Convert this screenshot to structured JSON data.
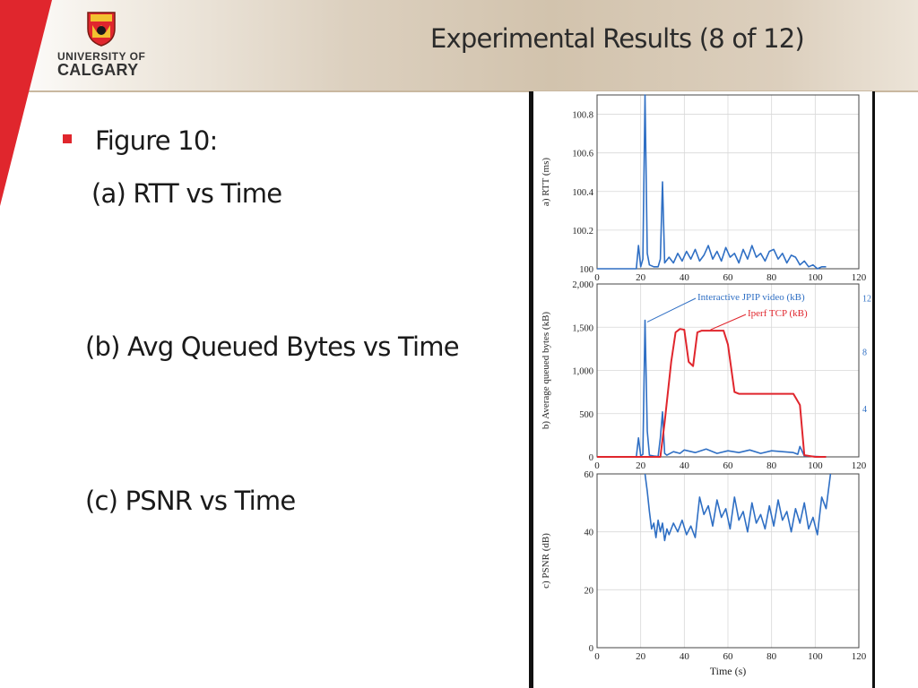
{
  "header": {
    "title": "Experimental Results (8 of 12)",
    "logo_line1": "UNIVERSITY OF",
    "logo_line2": "CALGARY"
  },
  "content": {
    "figure_label": "Figure 10:",
    "item_a": "(a) RTT vs Time",
    "item_b": "(b) Avg Queued Bytes vs Time",
    "item_c": "(c) PSNR vs Time"
  },
  "colors": {
    "accent_red": "#e0262d",
    "series_blue": "#2f6fc4",
    "series_red": "#e0262d"
  },
  "chart_data": [
    {
      "type": "line",
      "panel": "a",
      "ylabel": "a) RTT (ms)",
      "xlim": [
        0,
        120
      ],
      "ylim": [
        100,
        100.9
      ],
      "xticks": [
        "0",
        "20",
        "40",
        "60",
        "80",
        "100",
        "120"
      ],
      "yticks": [
        "100",
        "100.2",
        "100.4",
        "100.6",
        "100.8"
      ],
      "series": [
        {
          "name": "RTT",
          "color": "#2f6fc4",
          "x": [
            0,
            10,
            18,
            19,
            20,
            21,
            22,
            23,
            24,
            26,
            28,
            29,
            30,
            31,
            33,
            35,
            37,
            39,
            41,
            43,
            45,
            47,
            49,
            51,
            53,
            55,
            57,
            59,
            61,
            63,
            65,
            67,
            69,
            71,
            73,
            75,
            77,
            79,
            81,
            83,
            85,
            87,
            89,
            91,
            93,
            95,
            97,
            99,
            101,
            103,
            105
          ],
          "y": [
            100,
            100,
            100,
            100.12,
            100.01,
            100.05,
            100.92,
            100.08,
            100.02,
            100.01,
            100.01,
            100.05,
            100.45,
            100.03,
            100.06,
            100.03,
            100.08,
            100.04,
            100.09,
            100.05,
            100.1,
            100.04,
            100.07,
            100.12,
            100.05,
            100.09,
            100.04,
            100.11,
            100.06,
            100.08,
            100.03,
            100.1,
            100.05,
            100.12,
            100.06,
            100.08,
            100.04,
            100.09,
            100.1,
            100.05,
            100.08,
            100.03,
            100.07,
            100.06,
            100.02,
            100.04,
            100.01,
            100.02,
            100,
            100.01,
            100.01
          ]
        }
      ]
    },
    {
      "type": "line",
      "panel": "b",
      "ylabel": "b) Average queued bytes (kB)",
      "xlim": [
        0,
        120
      ],
      "ylim": [
        0,
        2000
      ],
      "xticks": [
        "0",
        "20",
        "40",
        "60",
        "80",
        "100",
        "120"
      ],
      "yticks": [
        "0",
        "500",
        "1,000",
        "1,500",
        "2,000"
      ],
      "y2ticks": [
        "4",
        "8",
        "12"
      ],
      "annotations": [
        "Interactive JPIP video (kB)",
        "Iperf TCP (kB)"
      ],
      "series": [
        {
          "name": "Interactive JPIP video (kB)",
          "color": "#2f6fc4",
          "x": [
            0,
            15,
            18,
            19,
            20,
            21,
            22,
            23,
            24,
            26,
            28,
            29,
            30,
            31,
            32,
            35,
            38,
            40,
            45,
            50,
            55,
            60,
            65,
            70,
            75,
            80,
            85,
            90,
            92,
            93,
            95,
            100,
            105
          ],
          "y": [
            0,
            0,
            0,
            220,
            10,
            30,
            1580,
            300,
            20,
            10,
            5,
            220,
            520,
            40,
            20,
            60,
            40,
            80,
            50,
            90,
            40,
            70,
            50,
            80,
            40,
            70,
            60,
            50,
            30,
            120,
            10,
            5,
            0
          ]
        },
        {
          "name": "Iperf TCP (kB)",
          "color": "#e0262d",
          "x": [
            0,
            29,
            31,
            34,
            36,
            38,
            40,
            42,
            44,
            46,
            48,
            50,
            52,
            55,
            58,
            60,
            63,
            65,
            70,
            80,
            90,
            93,
            95,
            100,
            105
          ],
          "y": [
            0,
            0,
            400,
            1100,
            1440,
            1480,
            1470,
            1100,
            1050,
            1440,
            1460,
            1460,
            1460,
            1460,
            1460,
            1300,
            750,
            730,
            730,
            730,
            730,
            600,
            20,
            0,
            0
          ]
        }
      ]
    },
    {
      "type": "line",
      "panel": "c",
      "ylabel": "c) PSNR (dB)",
      "xlabel": "Time (s)",
      "xlim": [
        0,
        120
      ],
      "ylim": [
        0,
        60
      ],
      "xticks": [
        "0",
        "20",
        "40",
        "60",
        "80",
        "100",
        "120"
      ],
      "yticks": [
        "0",
        "20",
        "40",
        "60"
      ],
      "series": [
        {
          "name": "PSNR",
          "color": "#2f6fc4",
          "x": [
            22,
            23,
            24,
            25,
            26,
            27,
            28,
            29,
            30,
            31,
            32,
            33,
            35,
            37,
            39,
            41,
            43,
            45,
            47,
            49,
            51,
            53,
            55,
            57,
            59,
            61,
            63,
            65,
            67,
            69,
            71,
            73,
            75,
            77,
            79,
            81,
            83,
            85,
            87,
            89,
            91,
            93,
            95,
            97,
            99,
            101,
            103,
            105,
            107
          ],
          "y": [
            60,
            54,
            47,
            41,
            43,
            38,
            44,
            40,
            43,
            37,
            41,
            39,
            43,
            40,
            44,
            39,
            42,
            38,
            52,
            46,
            49,
            42,
            51,
            45,
            48,
            41,
            52,
            44,
            47,
            40,
            50,
            43,
            46,
            41,
            49,
            42,
            51,
            44,
            47,
            40,
            48,
            43,
            50,
            41,
            45,
            39,
            52,
            48,
            60
          ]
        }
      ]
    }
  ]
}
